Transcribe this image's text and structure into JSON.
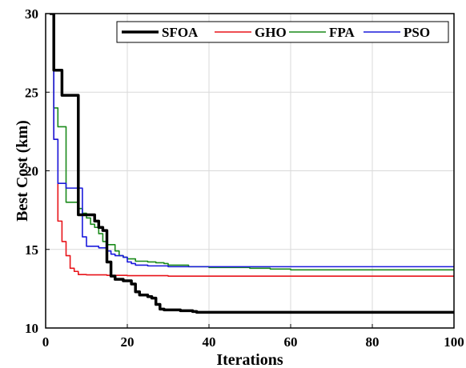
{
  "chart_data": {
    "type": "line",
    "xlabel": "Iterations",
    "ylabel": "Best Cost (km)",
    "xlim": [
      0,
      100
    ],
    "ylim": [
      10,
      30
    ],
    "xticks": [
      0,
      20,
      40,
      60,
      80,
      100
    ],
    "yticks": [
      10,
      15,
      20,
      25,
      30
    ],
    "grid": true,
    "legend_position": "top-right",
    "series": [
      {
        "name": "SFOA",
        "color": "#000000",
        "width": 3.5,
        "points": [
          [
            1,
            30
          ],
          [
            2,
            26.4
          ],
          [
            3,
            26.4
          ],
          [
            4,
            24.8
          ],
          [
            5,
            24.8
          ],
          [
            6,
            24.8
          ],
          [
            7,
            24.8
          ],
          [
            8,
            17.2
          ],
          [
            9,
            17.2
          ],
          [
            10,
            17.2
          ],
          [
            11,
            17.2
          ],
          [
            12,
            16.8
          ],
          [
            13,
            16.4
          ],
          [
            14,
            16.2
          ],
          [
            15,
            14.2
          ],
          [
            16,
            13.3
          ],
          [
            17,
            13.1
          ],
          [
            18,
            13.1
          ],
          [
            19,
            13.0
          ],
          [
            20,
            13.0
          ],
          [
            21,
            12.8
          ],
          [
            22,
            12.3
          ],
          [
            23,
            12.1
          ],
          [
            24,
            12.1
          ],
          [
            25,
            12.0
          ],
          [
            26,
            11.9
          ],
          [
            27,
            11.5
          ],
          [
            28,
            11.2
          ],
          [
            29,
            11.15
          ],
          [
            30,
            11.15
          ],
          [
            31,
            11.15
          ],
          [
            32,
            11.15
          ],
          [
            33,
            11.1
          ],
          [
            34,
            11.1
          ],
          [
            35,
            11.1
          ],
          [
            36,
            11.05
          ],
          [
            37,
            11.0
          ],
          [
            40,
            11.0
          ],
          [
            50,
            11.0
          ],
          [
            60,
            11.0
          ],
          [
            70,
            11.0
          ],
          [
            80,
            11.0
          ],
          [
            90,
            11.0
          ],
          [
            100,
            11.0
          ]
        ]
      },
      {
        "name": "GHO",
        "color": "#e8141a",
        "width": 1.6,
        "points": [
          [
            1,
            30
          ],
          [
            2,
            22.0
          ],
          [
            3,
            16.8
          ],
          [
            4,
            15.5
          ],
          [
            5,
            14.6
          ],
          [
            6,
            13.8
          ],
          [
            7,
            13.6
          ],
          [
            8,
            13.4
          ],
          [
            10,
            13.38
          ],
          [
            15,
            13.35
          ],
          [
            20,
            13.33
          ],
          [
            30,
            13.3
          ],
          [
            40,
            13.3
          ],
          [
            50,
            13.3
          ],
          [
            60,
            13.3
          ],
          [
            70,
            13.3
          ],
          [
            80,
            13.3
          ],
          [
            90,
            13.3
          ],
          [
            100,
            13.3
          ]
        ]
      },
      {
        "name": "FPA",
        "color": "#1a8a1a",
        "width": 1.6,
        "points": [
          [
            1,
            30
          ],
          [
            2,
            24.0
          ],
          [
            3,
            22.8
          ],
          [
            4,
            22.8
          ],
          [
            5,
            18.0
          ],
          [
            6,
            18.0
          ],
          [
            7,
            18.0
          ],
          [
            8,
            17.6
          ],
          [
            9,
            17.3
          ],
          [
            10,
            17.0
          ],
          [
            11,
            16.6
          ],
          [
            12,
            16.4
          ],
          [
            13,
            16.0
          ],
          [
            14,
            15.5
          ],
          [
            15,
            15.3
          ],
          [
            16,
            15.3
          ],
          [
            17,
            14.9
          ],
          [
            18,
            14.6
          ],
          [
            19,
            14.5
          ],
          [
            20,
            14.4
          ],
          [
            21,
            14.4
          ],
          [
            22,
            14.25
          ],
          [
            25,
            14.2
          ],
          [
            27,
            14.15
          ],
          [
            29,
            14.1
          ],
          [
            30,
            14.0
          ],
          [
            35,
            13.9
          ],
          [
            40,
            13.85
          ],
          [
            45,
            13.85
          ],
          [
            50,
            13.8
          ],
          [
            55,
            13.75
          ],
          [
            60,
            13.7
          ],
          [
            70,
            13.7
          ],
          [
            80,
            13.7
          ],
          [
            90,
            13.7
          ],
          [
            100,
            13.7
          ]
        ]
      },
      {
        "name": "PSO",
        "color": "#1a1adc",
        "width": 1.6,
        "points": [
          [
            1,
            30
          ],
          [
            2,
            22.0
          ],
          [
            3,
            19.2
          ],
          [
            4,
            19.2
          ],
          [
            5,
            18.9
          ],
          [
            6,
            18.9
          ],
          [
            7,
            18.9
          ],
          [
            8,
            18.9
          ],
          [
            9,
            15.8
          ],
          [
            10,
            15.2
          ],
          [
            11,
            15.2
          ],
          [
            12,
            15.2
          ],
          [
            13,
            15.1
          ],
          [
            14,
            15.1
          ],
          [
            15,
            14.9
          ],
          [
            16,
            14.7
          ],
          [
            17,
            14.6
          ],
          [
            18,
            14.6
          ],
          [
            19,
            14.5
          ],
          [
            20,
            14.2
          ],
          [
            21,
            14.1
          ],
          [
            22,
            14.0
          ],
          [
            25,
            13.95
          ],
          [
            30,
            13.9
          ],
          [
            40,
            13.9
          ],
          [
            50,
            13.9
          ],
          [
            60,
            13.9
          ],
          [
            70,
            13.9
          ],
          [
            80,
            13.9
          ],
          [
            90,
            13.9
          ],
          [
            100,
            13.9
          ]
        ]
      }
    ]
  }
}
